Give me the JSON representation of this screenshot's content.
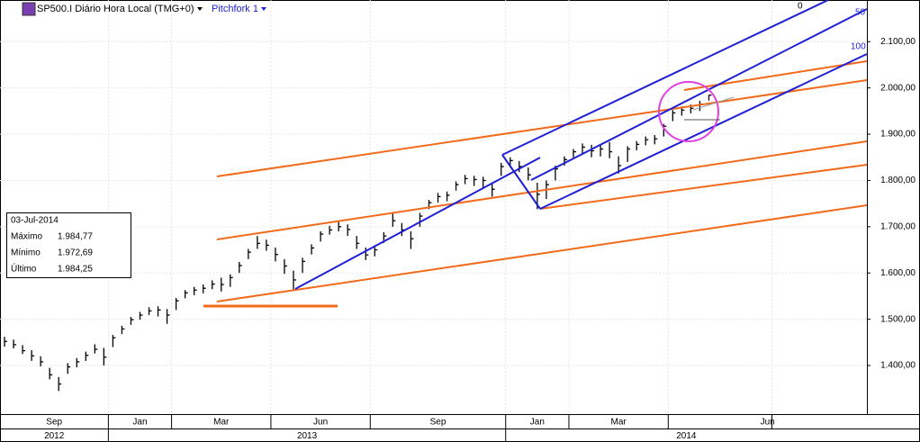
{
  "header": {
    "symbol": "SP500.I Diário Hora Local (TMG+0)",
    "tool": "Pitchfork 1"
  },
  "info_box": {
    "date": "03-Jul-2014",
    "rows": [
      [
        "Máximo",
        "1.984,77"
      ],
      [
        "Mínimo",
        "1.972,69"
      ],
      [
        "Último",
        "1.984,25"
      ]
    ]
  },
  "pitchfork_levels": [
    0,
    50,
    100
  ],
  "chart_data": {
    "type": "hlc",
    "color": "#000000",
    "grid": true,
    "categories": [
      "Sep",
      null,
      null,
      null,
      null,
      null,
      null,
      null,
      null,
      null,
      null,
      null,
      "Jan",
      null,
      null,
      null,
      null,
      null,
      null,
      "Mar",
      null,
      null,
      null,
      null,
      null,
      null,
      null,
      null,
      null,
      null,
      "Jun",
      null,
      null,
      null,
      null,
      null,
      null,
      null,
      null,
      null,
      null,
      "Sep",
      null,
      null,
      null,
      null,
      null,
      null,
      null,
      null,
      null,
      null,
      null,
      null,
      null,
      null,
      "Jan",
      null,
      null,
      null,
      null,
      null,
      null,
      "Mar",
      null,
      null,
      null,
      null,
      null,
      null,
      null,
      null,
      null,
      null,
      "Jun",
      null,
      null,
      null,
      null,
      null,
      null,
      null,
      null,
      null,
      null,
      null,
      null,
      null,
      null,
      null,
      null,
      null,
      null,
      null,
      null,
      null
    ],
    "years": [
      "2012",
      null,
      null,
      null,
      null,
      null,
      null,
      null,
      null,
      null,
      null,
      null,
      "2013",
      null,
      null,
      null,
      null,
      null,
      null,
      null,
      null,
      null,
      null,
      null,
      null,
      null,
      null,
      null,
      null,
      null,
      null,
      null,
      null,
      null,
      null,
      null,
      null,
      null,
      null,
      null,
      null,
      null,
      null,
      null,
      null,
      null,
      null,
      null,
      null,
      null,
      null,
      null,
      null,
      null,
      null,
      null,
      "2014",
      null,
      null,
      null,
      null,
      null,
      null,
      null,
      null,
      null,
      null,
      null,
      null,
      null,
      null,
      null,
      null,
      null,
      null,
      null,
      null,
      null,
      null,
      null,
      null,
      null,
      null,
      null,
      null,
      null,
      null,
      null,
      null,
      null,
      null,
      null,
      null,
      null,
      null
    ],
    "high": [
      1462,
      1456,
      1444,
      1433,
      1420,
      1395,
      1375,
      1405,
      1416,
      1430,
      1446,
      1438,
      1466,
      1486,
      1505,
      1516,
      1526,
      1528,
      1522,
      1546,
      1563,
      1570,
      1575,
      1584,
      1590,
      1597,
      1624,
      1652,
      1680,
      1672,
      1655,
      1630,
      1605,
      1633,
      1662,
      1690,
      1702,
      1712,
      1705,
      1680,
      1655,
      1660,
      1688,
      1730,
      1708,
      1690,
      1730,
      1758,
      1773,
      1776,
      1798,
      1812,
      1810,
      1808,
      1796,
      1838,
      1850,
      1842,
      1828,
      1795,
      1800,
      1832,
      1852,
      1868,
      1880,
      1877,
      1876,
      1883,
      1852,
      1874,
      1885,
      1895,
      1898,
      1922,
      1952,
      1960,
      1964,
      1972,
      1984.77,
      null,
      null,
      null,
      null,
      null,
      null,
      null,
      null,
      null,
      null,
      null,
      null,
      null,
      null,
      null,
      null,
      null
    ],
    "low": [
      1441,
      1437,
      1425,
      1410,
      1398,
      1370,
      1345,
      1382,
      1396,
      1410,
      1426,
      1400,
      1440,
      1468,
      1488,
      1499,
      1509,
      1506,
      1490,
      1520,
      1545,
      1552,
      1556,
      1565,
      1560,
      1570,
      1600,
      1630,
      1652,
      1648,
      1625,
      1598,
      1562,
      1600,
      1640,
      1668,
      1683,
      1690,
      1680,
      1652,
      1628,
      1636,
      1665,
      1700,
      1680,
      1652,
      1700,
      1738,
      1752,
      1755,
      1778,
      1792,
      1788,
      1782,
      1765,
      1810,
      1828,
      1818,
      1800,
      1738,
      1760,
      1800,
      1832,
      1850,
      1858,
      1850,
      1852,
      1848,
      1815,
      1840,
      1865,
      1876,
      1878,
      1895,
      1928,
      1940,
      1945,
      1950,
      1972.69,
      null,
      null,
      null,
      null,
      null,
      null,
      null,
      null,
      null,
      null,
      null,
      null,
      null,
      null,
      null,
      null,
      null
    ],
    "close": [
      1452,
      1445,
      1432,
      1421,
      1408,
      1380,
      1360,
      1397,
      1408,
      1422,
      1435,
      1418,
      1460,
      1479,
      1499,
      1509,
      1518,
      1520,
      1509,
      1540,
      1557,
      1563,
      1567,
      1576,
      1575,
      1590,
      1616,
      1645,
      1664,
      1660,
      1640,
      1615,
      1585,
      1625,
      1654,
      1684,
      1693,
      1700,
      1694,
      1664,
      1639,
      1650,
      1680,
      1713,
      1693,
      1674,
      1723,
      1752,
      1765,
      1768,
      1791,
      1804,
      1802,
      1800,
      1781,
      1830,
      1843,
      1830,
      1812,
      1770,
      1791,
      1825,
      1845,
      1862,
      1872,
      1864,
      1868,
      1862,
      1832,
      1868,
      1878,
      1888,
      1890,
      1917,
      1946,
      1952,
      1956,
      1965,
      1984.25,
      null,
      null,
      null,
      null,
      null,
      null,
      null,
      null,
      null,
      null,
      null,
      null,
      null,
      null,
      null,
      null,
      null
    ],
    "ylim": [
      1295,
      2190
    ],
    "yticks": [
      {
        "value": 1400,
        "label": "1.400,00"
      },
      {
        "value": 1500,
        "label": "1.500,00"
      },
      {
        "value": 1600,
        "label": "1.600,00"
      },
      {
        "value": 1700,
        "label": "1.700,00"
      },
      {
        "value": 1800,
        "label": "1.800,00"
      },
      {
        "value": 1900,
        "label": "1.900,00"
      },
      {
        "value": 2000,
        "label": "2.000,00"
      },
      {
        "value": 2100,
        "label": "2.100,00"
      }
    ]
  }
}
